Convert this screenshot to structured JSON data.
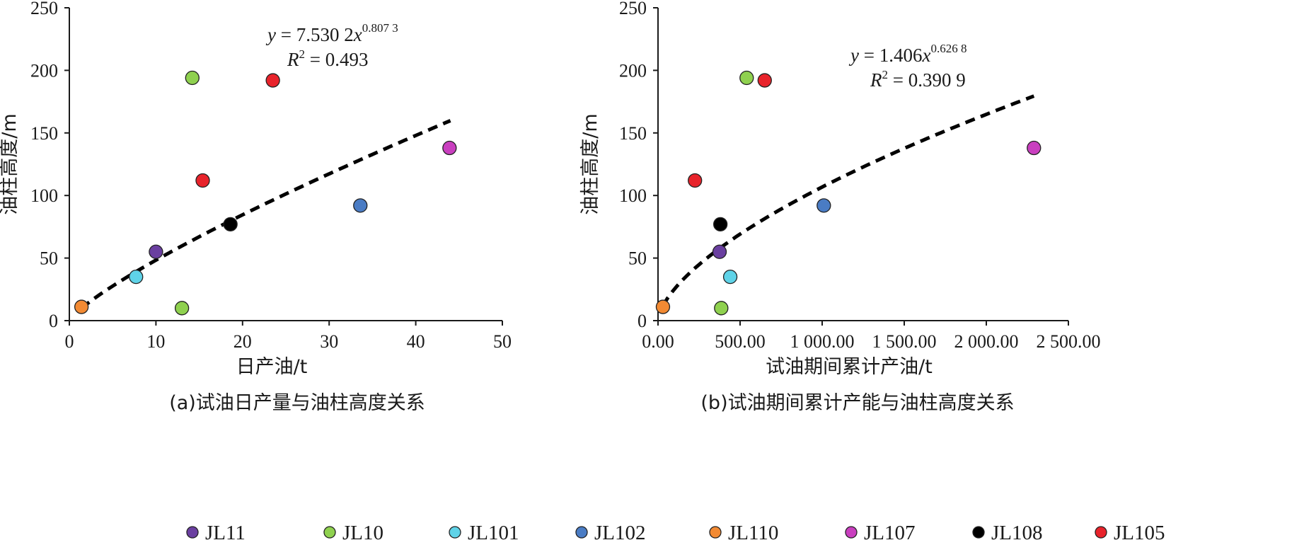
{
  "chart_data": [
    {
      "type": "scatter",
      "caption": "(a)试油日产量与油柱高度关系",
      "xlabel": "日产油/t",
      "ylabel": "油柱高度/m",
      "xlim": [
        0,
        50
      ],
      "ylim": [
        0,
        250
      ],
      "xticks": [
        "0",
        "10",
        "20",
        "30",
        "40",
        "50"
      ],
      "yticks": [
        "0",
        "50",
        "100",
        "150",
        "200",
        "250"
      ],
      "grid": false,
      "series": [
        {
          "name": "JL11",
          "points": [
            [
              10.0,
              55
            ]
          ]
        },
        {
          "name": "JL10",
          "points": [
            [
              14.2,
              194
            ],
            [
              13.0,
              10
            ]
          ]
        },
        {
          "name": "JL101",
          "points": [
            [
              7.7,
              35
            ]
          ]
        },
        {
          "name": "JL102",
          "points": [
            [
              33.6,
              92
            ]
          ]
        },
        {
          "name": "JL110",
          "points": [
            [
              1.4,
              11
            ]
          ]
        },
        {
          "name": "JL107",
          "points": [
            [
              43.9,
              138
            ]
          ]
        },
        {
          "name": "JL108",
          "points": [
            [
              18.6,
              77
            ]
          ]
        },
        {
          "name": "JL105",
          "points": [
            [
              23.5,
              192
            ],
            [
              15.4,
              112
            ]
          ]
        }
      ],
      "trendline": {
        "type": "power",
        "a": 7.5302,
        "b": 0.8073,
        "x_range": [
          1.4,
          44
        ]
      },
      "equation": {
        "y": "y",
        "eq": " = 7.530 2",
        "x": "x",
        "exp": "0.807 3",
        "r2_var": "R",
        "r2_sup": "2",
        "r2_val": " = 0.493"
      }
    },
    {
      "type": "scatter",
      "caption": "(b)试油期间累计产能与油柱高度关系",
      "xlabel": "试油期间累计产油/t",
      "ylabel": "油柱高度/m",
      "xlim": [
        0,
        2500
      ],
      "ylim": [
        0,
        250
      ],
      "xticks": [
        "0.00",
        "500.00",
        "1 000.00",
        "1 500.00",
        "2 000.00",
        "2 500.00"
      ],
      "yticks": [
        "0",
        "50",
        "100",
        "150",
        "200",
        "250"
      ],
      "grid": false,
      "series": [
        {
          "name": "JL11",
          "points": [
            [
              375,
              55
            ]
          ]
        },
        {
          "name": "JL10",
          "points": [
            [
              540,
              194
            ],
            [
              385,
              10
            ]
          ]
        },
        {
          "name": "JL101",
          "points": [
            [
              440,
              35
            ]
          ]
        },
        {
          "name": "JL102",
          "points": [
            [
              1010,
              92
            ]
          ]
        },
        {
          "name": "JL110",
          "points": [
            [
              30,
              11
            ]
          ]
        },
        {
          "name": "JL107",
          "points": [
            [
              2290,
              138
            ]
          ]
        },
        {
          "name": "JL108",
          "points": [
            [
              380,
              77
            ]
          ]
        },
        {
          "name": "JL105",
          "points": [
            [
              650,
              192
            ],
            [
              225,
              112
            ]
          ]
        }
      ],
      "trendline": {
        "type": "power",
        "a": 1.406,
        "b": 0.6268,
        "x_range": [
          30,
          2290
        ]
      },
      "equation": {
        "y": "y",
        "eq": " = 1.406",
        "x": "x",
        "exp": "0.626 8",
        "r2_var": "R",
        "r2_sup": "2",
        "r2_val": " = 0.390 9"
      }
    }
  ],
  "legend": {
    "placement": "bottom",
    "items": [
      {
        "name": "JL11",
        "color": "#6a3fa0"
      },
      {
        "name": "JL10",
        "color": "#8fd14f"
      },
      {
        "name": "JL101",
        "color": "#5fd3e8"
      },
      {
        "name": "JL102",
        "color": "#4a7cc4"
      },
      {
        "name": "JL110",
        "color": "#f28a33"
      },
      {
        "name": "JL107",
        "color": "#c93fbf"
      },
      {
        "name": "JL108",
        "color": "#000000"
      },
      {
        "name": "JL105",
        "color": "#e8232b"
      }
    ]
  }
}
